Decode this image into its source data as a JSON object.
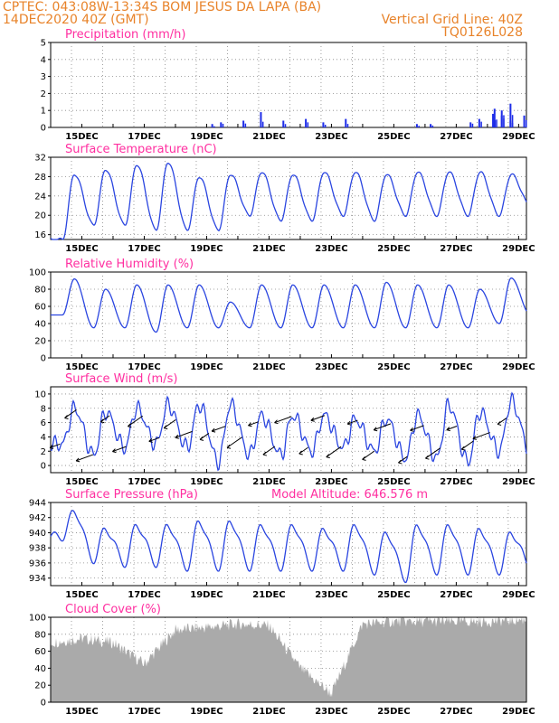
{
  "header": {
    "line1_left": "CPTEC:   043:08W-13:34S   BOM JESUS DA LAPA (BA)",
    "line2_left": "14DEC2020 40Z (GMT)",
    "line2_right": "Vertical Grid Line: 40Z",
    "line3_right": "TQ0126L028"
  },
  "colors": {
    "line": "#2a45e0",
    "bar": "#1e2de8",
    "cloud": "#aaaaaa",
    "title": "#ff2fa0",
    "header": "#e8832a"
  },
  "x_ticks": [
    "15DEC",
    "17DEC",
    "19DEC",
    "21DEC",
    "23DEC",
    "25DEC",
    "27DEC",
    "29DEC"
  ],
  "chart_data": [
    {
      "type": "bar",
      "title": "Precipitation (mm/h)",
      "ylim": [
        0,
        5
      ],
      "yticks": [
        "0",
        "1",
        "2",
        "3",
        "4",
        "5"
      ],
      "x": [
        "19DEC",
        "19DEC",
        "20DEC",
        "20DEC",
        "21DEC",
        "22DEC",
        "22DEC",
        "23DEC",
        "25DEC",
        "26DEC",
        "27DEC",
        "27DEC",
        "28DEC",
        "28DEC",
        "28DEC",
        "28DEC",
        "28DEC",
        "28DEC",
        "29DEC"
      ],
      "values": [
        0.2,
        0.3,
        0.9,
        0.4,
        0.4,
        0.3,
        0.5,
        0.5,
        0.2,
        0.2,
        0.3,
        0.5,
        1.1,
        0.7,
        0.4,
        0.8,
        1.0,
        1.4,
        0.7
      ]
    },
    {
      "type": "line",
      "title": "Surface Temperature (nC)",
      "ylim": [
        15,
        32
      ],
      "yticks": [
        "16",
        "20",
        "24",
        "28",
        "32"
      ],
      "series": [
        {
          "x": [
            "14DEC",
            "15DEC",
            "16DEC",
            "17DEC",
            "18DEC",
            "19DEC",
            "20DEC",
            "21DEC",
            "22DEC",
            "23DEC",
            "24DEC",
            "25DEC",
            "26DEC",
            "27DEC",
            "28DEC",
            "29DEC"
          ],
          "min": [
            15,
            18,
            18,
            17,
            17,
            17,
            20,
            19,
            19,
            20,
            19,
            20,
            20,
            20,
            20,
            22
          ],
          "max": [
            28.5,
            29.5,
            30.5,
            31,
            28,
            28.5,
            29,
            28.5,
            29,
            29,
            28.5,
            29,
            29,
            29,
            28.5,
            26
          ]
        }
      ]
    },
    {
      "type": "line",
      "title": "Relative Humidity (%)",
      "ylim": [
        0,
        100
      ],
      "yticks": [
        "0",
        "20",
        "40",
        "60",
        "80",
        "100"
      ],
      "series": [
        {
          "x": [
            "14DEC",
            "15DEC",
            "16DEC",
            "17DEC",
            "18DEC",
            "19DEC",
            "20DEC",
            "21DEC",
            "22DEC",
            "23DEC",
            "24DEC",
            "25DEC",
            "26DEC",
            "27DEC",
            "28DEC",
            "29DEC"
          ],
          "min": [
            50,
            35,
            35,
            30,
            35,
            35,
            35,
            35,
            35,
            35,
            35,
            35,
            35,
            35,
            40,
            50
          ],
          "max": [
            92,
            80,
            85,
            85,
            85,
            65,
            85,
            85,
            85,
            85,
            88,
            85,
            85,
            80,
            93,
            88
          ]
        }
      ]
    },
    {
      "type": "line",
      "title": "Surface Wind (m/s)",
      "ylim": [
        -1,
        11
      ],
      "yticks": [
        "0",
        "2",
        "4",
        "6",
        "8",
        "10"
      ],
      "series": [
        {
          "x": [
            "14DEC",
            "15DEC",
            "16DEC",
            "17DEC",
            "18DEC",
            "19DEC",
            "20DEC",
            "21DEC",
            "22DEC",
            "23DEC",
            "24DEC",
            "25DEC",
            "26DEC",
            "27DEC",
            "28DEC",
            "29DEC"
          ],
          "min": [
            3,
            1.5,
            2.5,
            3,
            2.5,
            0.5,
            1.5,
            1.5,
            2,
            2.5,
            2,
            1,
            1,
            0.5,
            2,
            2
          ],
          "max": [
            8,
            7.5,
            8,
            8.5,
            8.5,
            8.5,
            7,
            7,
            7,
            6.5,
            6.5,
            7,
            8.5,
            7.5,
            9,
            8
          ]
        }
      ]
    },
    {
      "type": "line",
      "title": "Surface Pressure (hPa)",
      "annotation": "Model Altitude: 646.576 m",
      "ylim": [
        933,
        944
      ],
      "yticks": [
        "934",
        "936",
        "938",
        "940",
        "942",
        "944"
      ],
      "series": [
        {
          "x": [
            "14DEC",
            "15DEC",
            "16DEC",
            "17DEC",
            "18DEC",
            "19DEC",
            "20DEC",
            "21DEC",
            "22DEC",
            "23DEC",
            "24DEC",
            "25DEC",
            "26DEC",
            "27DEC",
            "28DEC",
            "29DEC"
          ],
          "min": [
            939.5,
            936.5,
            936,
            936,
            935.5,
            935.5,
            935.5,
            935.5,
            935.5,
            935.5,
            935,
            934,
            935,
            935,
            935,
            935.5
          ],
          "max": [
            942.8,
            940.5,
            941,
            941,
            941.5,
            941.5,
            941,
            941,
            940.5,
            941,
            940,
            941,
            941,
            940.5,
            940,
            939
          ]
        }
      ]
    },
    {
      "type": "area",
      "title": "Cloud Cover (%)",
      "ylim": [
        0,
        100
      ],
      "yticks": [
        "0",
        "20",
        "40",
        "60",
        "80",
        "100"
      ],
      "series": [
        {
          "x": [
            "14DEC",
            "15DEC",
            "16DEC",
            "17DEC",
            "18DEC",
            "19DEC",
            "20DEC",
            "21DEC",
            "22DEC",
            "23DEC",
            "24DEC",
            "25DEC",
            "26DEC",
            "27DEC",
            "28DEC",
            "29DEC"
          ],
          "values": [
            70,
            75,
            70,
            45,
            85,
            88,
            92,
            90,
            40,
            10,
            92,
            95,
            95,
            95,
            95,
            97
          ]
        }
      ]
    }
  ]
}
